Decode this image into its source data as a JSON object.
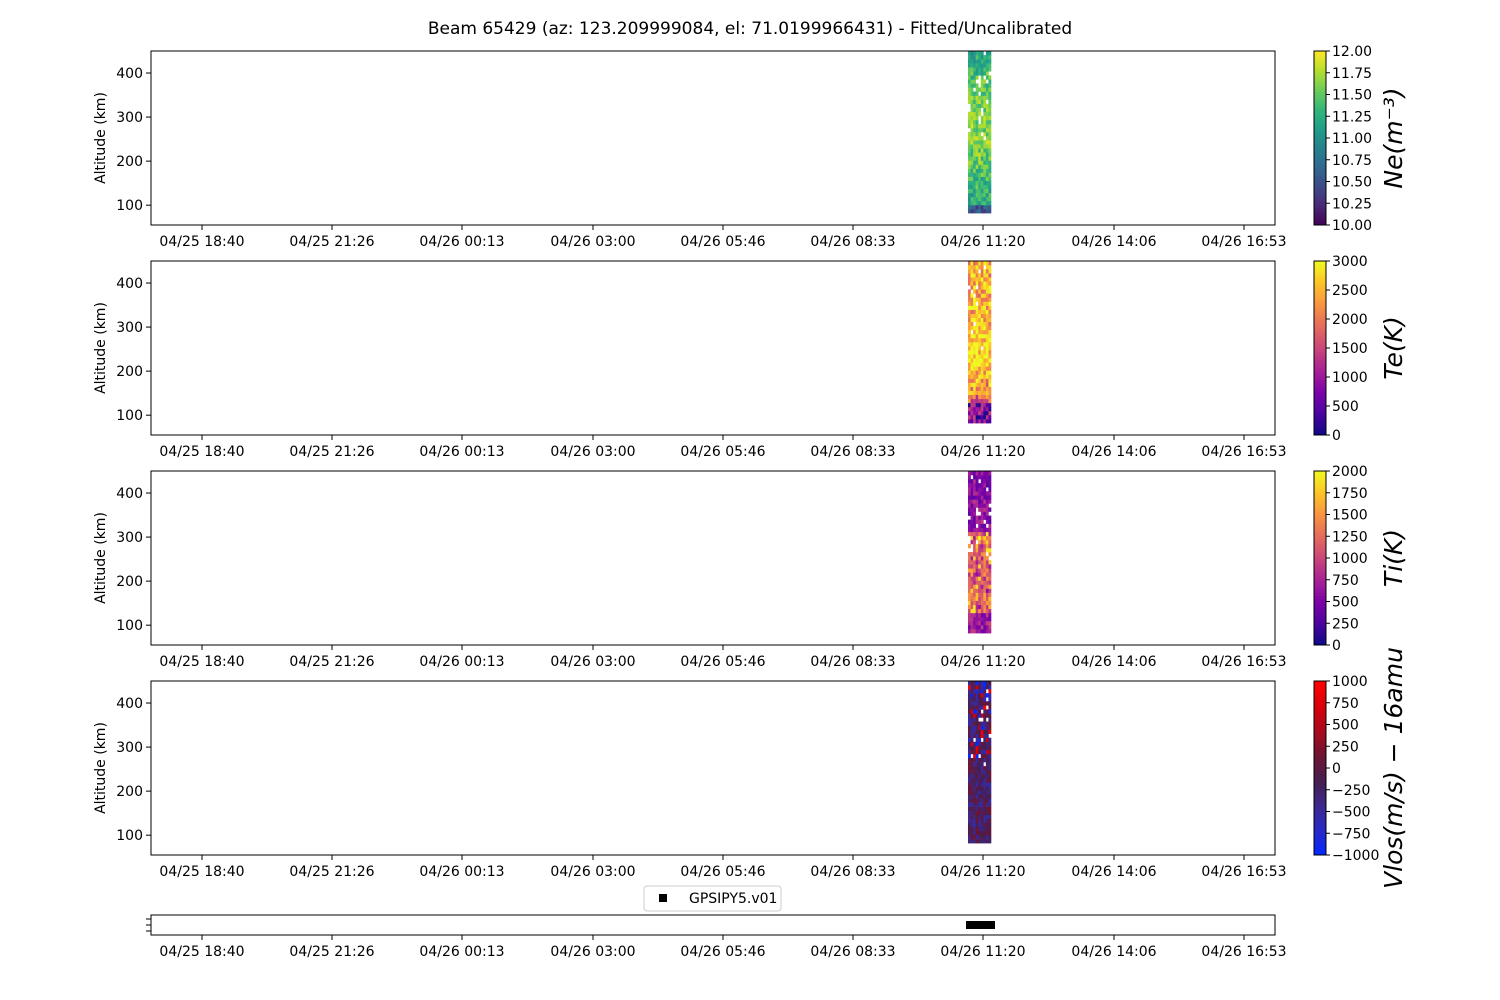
{
  "title": "Beam 65429 (az: 123.209999084, el: 71.0199966431) - Fitted/Uncalibrated",
  "chart_data": [
    {
      "type": "heatmap",
      "parameter": "Ne",
      "ylabel": "Altitude (km)",
      "colorbar_label": "Ne(m⁻³)",
      "colormap": "viridis",
      "clim": [
        10.0,
        12.0
      ],
      "colorbar_ticks": [
        "10.00",
        "10.25",
        "10.50",
        "10.75",
        "11.00",
        "11.25",
        "11.50",
        "11.75",
        "12.00"
      ],
      "colorbar_tick_values": [
        10.0,
        10.25,
        10.5,
        10.75,
        11.0,
        11.25,
        11.5,
        11.75,
        12.0
      ],
      "ylim": [
        55,
        450
      ],
      "yticks": [
        100,
        200,
        300,
        400
      ],
      "xticks": [
        "04/25 18:40",
        "04/25 21:26",
        "04/26 00:13",
        "04/26 03:00",
        "04/26 05:46",
        "04/26 08:33",
        "04/26 11:20",
        "04/26 14:06",
        "04/26 16:53"
      ],
      "data_start_hours_offset": -0.6,
      "data_end_hours_offset": 0.1,
      "data_alt_range": [
        82,
        450
      ]
    },
    {
      "type": "heatmap",
      "parameter": "Te",
      "ylabel": "Altitude (km)",
      "colorbar_label": "Te(K)",
      "colormap": "plasma",
      "clim": [
        0,
        3000
      ],
      "colorbar_ticks": [
        "0",
        "500",
        "1000",
        "1500",
        "2000",
        "2500",
        "3000"
      ],
      "colorbar_tick_values": [
        0,
        500,
        1000,
        1500,
        2000,
        2500,
        3000
      ],
      "ylim": [
        55,
        450
      ],
      "yticks": [
        100,
        200,
        300,
        400
      ],
      "xticks": [
        "04/25 18:40",
        "04/25 21:26",
        "04/26 00:13",
        "04/26 03:00",
        "04/26 05:46",
        "04/26 08:33",
        "04/26 11:20",
        "04/26 14:06",
        "04/26 16:53"
      ],
      "data_alt_range": [
        82,
        450
      ]
    },
    {
      "type": "heatmap",
      "parameter": "Ti",
      "ylabel": "Altitude (km)",
      "colorbar_label": "Ti(K)",
      "colormap": "plasma",
      "clim": [
        0,
        2000
      ],
      "colorbar_ticks": [
        "0",
        "250",
        "500",
        "750",
        "1000",
        "1250",
        "1500",
        "1750",
        "2000"
      ],
      "colorbar_tick_values": [
        0,
        250,
        500,
        750,
        1000,
        1250,
        1500,
        1750,
        2000
      ],
      "ylim": [
        55,
        450
      ],
      "yticks": [
        100,
        200,
        300,
        400
      ],
      "xticks": [
        "04/25 18:40",
        "04/25 21:26",
        "04/26 00:13",
        "04/26 03:00",
        "04/26 05:46",
        "04/26 08:33",
        "04/26 11:20",
        "04/26 14:06",
        "04/26 16:53"
      ],
      "data_alt_range": [
        82,
        450
      ]
    },
    {
      "type": "heatmap",
      "parameter": "Vlos",
      "ylabel": "Altitude (km)",
      "colorbar_label": "Vlos(m/s) − 16amu",
      "colormap": "bwr-dark",
      "clim": [
        -1000,
        1000
      ],
      "colorbar_ticks": [
        "−1000",
        "−750",
        "−500",
        "−250",
        "0",
        "250",
        "500",
        "750",
        "1000"
      ],
      "colorbar_tick_values": [
        -1000,
        -750,
        -500,
        -250,
        0,
        250,
        500,
        750,
        1000
      ],
      "ylim": [
        55,
        450
      ],
      "yticks": [
        100,
        200,
        300,
        400
      ],
      "xticks": [
        "04/25 18:40",
        "04/25 21:26",
        "04/26 00:13",
        "04/26 03:00",
        "04/26 05:46",
        "04/26 08:33",
        "04/26 11:20",
        "04/26 14:06",
        "04/26 16:53"
      ],
      "data_alt_range": [
        82,
        450
      ]
    },
    {
      "type": "scatter",
      "parameter": "mode",
      "legend": [
        "GPSIPY5.v01"
      ],
      "legend_placement": "top-center",
      "xticks": [
        "04/25 18:40",
        "04/25 21:26",
        "04/26 00:13",
        "04/26 03:00",
        "04/26 05:46",
        "04/26 08:33",
        "04/26 11:20",
        "04/26 14:06",
        "04/26 16:53"
      ]
    }
  ],
  "colors": {
    "marker": "#000000",
    "axis": "#000000"
  }
}
